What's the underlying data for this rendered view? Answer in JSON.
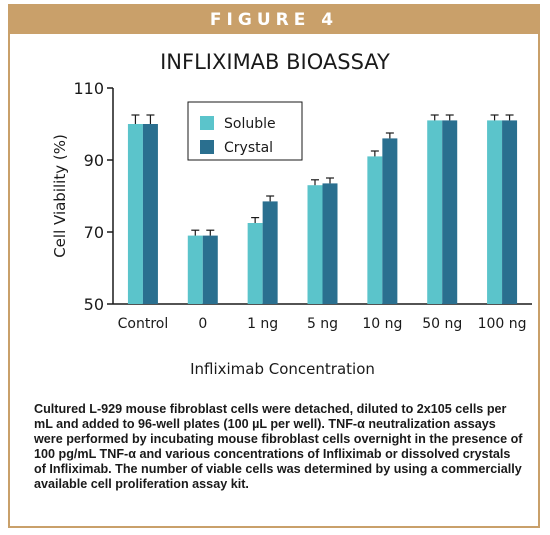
{
  "banner": "FIGURE 4",
  "caption": "Cultured L-929 mouse fibroblast cells were detached, diluted to 2x105 cells per mL and added to 96-well plates (100 µL per well). TNF-α neutralization assays were performed by incubating mouse fibroblast cells overnight in the presence of 100 pg/mL TNF-α and various concentrations of Infliximab or dissolved crystals of Infliximab. The number of viable cells was determined by using a commercially available cell proliferation assay kit.",
  "colors": {
    "soluble": "#5bc4cb",
    "crystal": "#2a6f8f",
    "border": "#c9a06a"
  },
  "chart_data": {
    "type": "bar",
    "title": "INFLIXIMAB BIOASSAY",
    "xlabel": "Infliximab Concentration",
    "ylabel": "Cell Viability (%)",
    "ylim": [
      50,
      110
    ],
    "yticks": [
      50,
      70,
      90,
      110
    ],
    "categories": [
      "Control",
      "0",
      "1 ng",
      "5 ng",
      "10 ng",
      "50 ng",
      "100 ng"
    ],
    "legend_position": "top-left",
    "series": [
      {
        "name": "Soluble",
        "color": "#5bc4cb",
        "values": [
          100,
          69,
          72.5,
          83,
          91,
          101,
          101
        ],
        "errors": [
          2.5,
          1.5,
          1.5,
          1.5,
          1.5,
          1.5,
          1.5
        ]
      },
      {
        "name": "Crystal",
        "color": "#2a6f8f",
        "values": [
          100,
          69,
          78.5,
          83.5,
          96,
          101,
          101
        ],
        "errors": [
          2.5,
          1.5,
          1.5,
          1.5,
          1.5,
          1.5,
          1.5
        ]
      }
    ]
  }
}
